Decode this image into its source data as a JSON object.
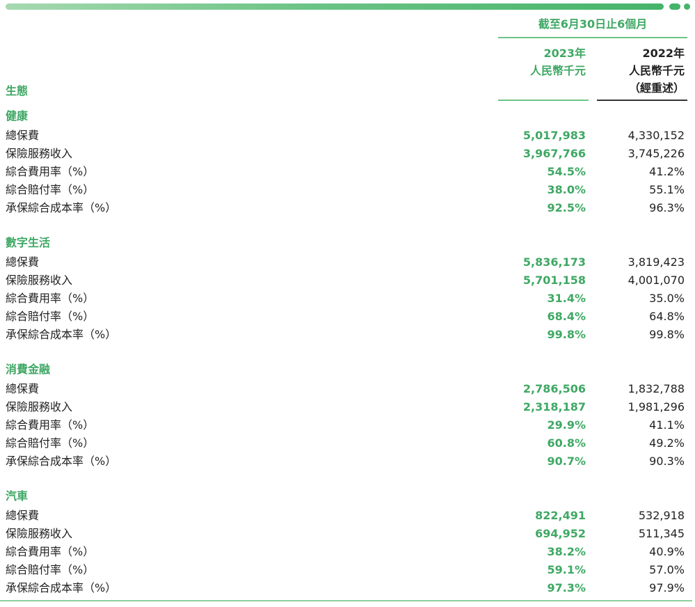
{
  "header": {
    "period": "截至6月30日止6個月",
    "col2023": {
      "year": "2023年",
      "unit": "人民幣千元"
    },
    "col2022": {
      "year": "2022年",
      "unit": "人民幣千元",
      "note": "（經重述）"
    },
    "ecosystem_label": "生態"
  },
  "sections": [
    {
      "title": "健康",
      "rows": [
        {
          "label": "總保費",
          "v2023": "5,017,983",
          "v2022": "4,330,152"
        },
        {
          "label": "保險服務收入",
          "v2023": "3,967,766",
          "v2022": "3,745,226"
        },
        {
          "label": "綜合費用率（%）",
          "v2023": "54.5%",
          "v2022": "41.2%"
        },
        {
          "label": "綜合賠付率（%）",
          "v2023": "38.0%",
          "v2022": "55.1%"
        },
        {
          "label": "承保綜合成本率（%）",
          "v2023": "92.5%",
          "v2022": "96.3%"
        }
      ]
    },
    {
      "title": "數字生活",
      "rows": [
        {
          "label": "總保費",
          "v2023": "5,836,173",
          "v2022": "3,819,423"
        },
        {
          "label": "保險服務收入",
          "v2023": "5,701,158",
          "v2022": "4,001,070"
        },
        {
          "label": "綜合費用率（%）",
          "v2023": "31.4%",
          "v2022": "35.0%"
        },
        {
          "label": "綜合賠付率（%）",
          "v2023": "68.4%",
          "v2022": "64.8%"
        },
        {
          "label": "承保綜合成本率（%）",
          "v2023": "99.8%",
          "v2022": "99.8%"
        }
      ]
    },
    {
      "title": "消費金融",
      "rows": [
        {
          "label": "總保費",
          "v2023": "2,786,506",
          "v2022": "1,832,788"
        },
        {
          "label": "保險服務收入",
          "v2023": "2,318,187",
          "v2022": "1,981,296"
        },
        {
          "label": "綜合費用率（%）",
          "v2023": "29.9%",
          "v2022": "41.1%"
        },
        {
          "label": "綜合賠付率（%）",
          "v2023": "60.8%",
          "v2022": "49.2%"
        },
        {
          "label": "承保綜合成本率（%）",
          "v2023": "90.7%",
          "v2022": "90.3%"
        }
      ]
    },
    {
      "title": "汽車",
      "rows": [
        {
          "label": "總保費",
          "v2023": "822,491",
          "v2022": "532,918"
        },
        {
          "label": "保險服務收入",
          "v2023": "694,952",
          "v2022": "511,345"
        },
        {
          "label": "綜合費用率（%）",
          "v2023": "38.2%",
          "v2022": "40.9%"
        },
        {
          "label": "綜合賠付率（%）",
          "v2023": "59.1%",
          "v2022": "57.0%"
        },
        {
          "label": "承保綜合成本率（%）",
          "v2023": "97.3%",
          "v2022": "97.9%"
        }
      ]
    }
  ]
}
